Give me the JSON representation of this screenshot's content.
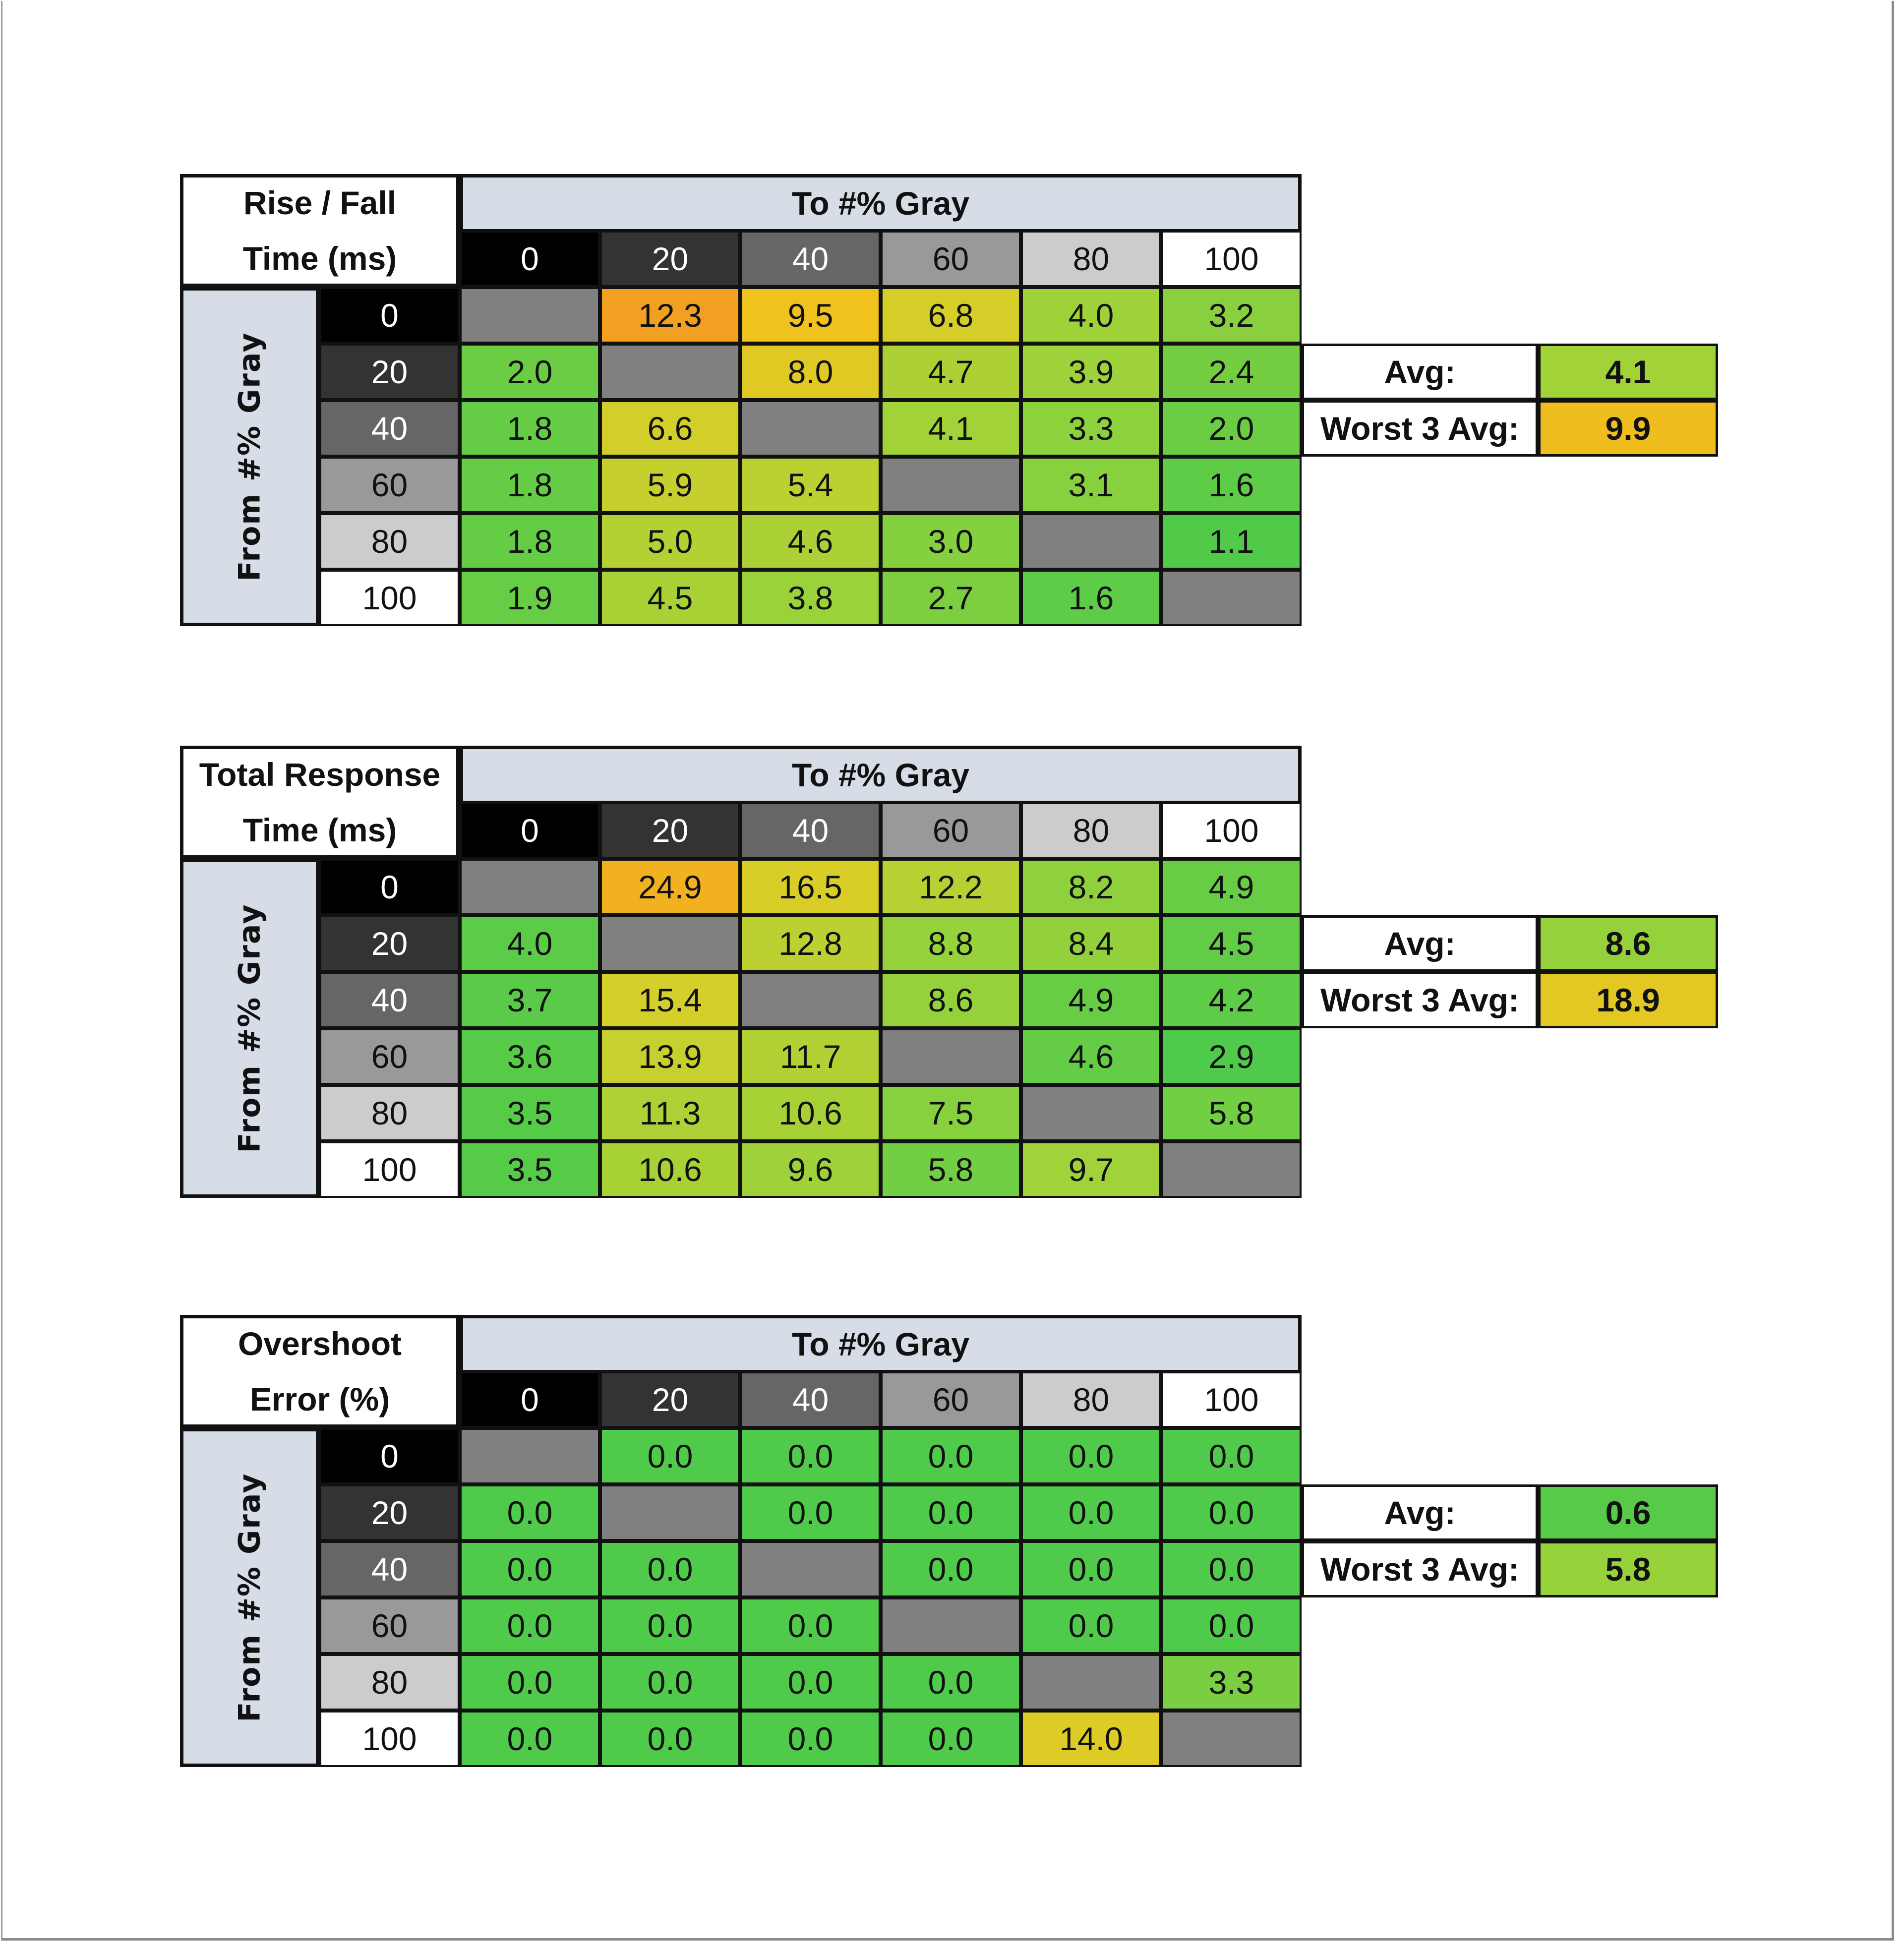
{
  "tables": [
    {
      "title_lines": [
        "Rise / Fall",
        "Time (ms)"
      ],
      "to_label": "To #% Gray",
      "from_label": "From #% Gray",
      "levels": [
        "0",
        "20",
        "40",
        "60",
        "80",
        "100"
      ],
      "color_scale": {
        "min": 1.0,
        "max": 12.3
      },
      "values": [
        [
          null,
          "12.3",
          "9.5",
          "6.8",
          "4.0",
          "3.2"
        ],
        [
          "2.0",
          null,
          "8.0",
          "4.7",
          "3.9",
          "2.4"
        ],
        [
          "1.8",
          "6.6",
          null,
          "4.1",
          "3.3",
          "2.0"
        ],
        [
          "1.8",
          "5.9",
          "5.4",
          null,
          "3.1",
          "1.6"
        ],
        [
          "1.8",
          "5.0",
          "4.6",
          "3.0",
          null,
          "1.1"
        ],
        [
          "1.9",
          "4.5",
          "3.8",
          "2.7",
          "1.6",
          null
        ]
      ],
      "avg_label": "Avg:",
      "avg": "4.1",
      "worst_label": "Worst 3 Avg:",
      "worst": "9.9"
    },
    {
      "title_lines": [
        "Total Response",
        "Time (ms)"
      ],
      "to_label": "To #% Gray",
      "from_label": "From #% Gray",
      "levels": [
        "0",
        "20",
        "40",
        "60",
        "80",
        "100"
      ],
      "color_scale": {
        "min": 2.9,
        "max": 28.0
      },
      "values": [
        [
          null,
          "24.9",
          "16.5",
          "12.2",
          "8.2",
          "4.9"
        ],
        [
          "4.0",
          null,
          "12.8",
          "8.8",
          "8.4",
          "4.5"
        ],
        [
          "3.7",
          "15.4",
          null,
          "8.6",
          "4.9",
          "4.2"
        ],
        [
          "3.6",
          "13.9",
          "11.7",
          null,
          "4.6",
          "2.9"
        ],
        [
          "3.5",
          "11.3",
          "10.6",
          "7.5",
          null,
          "5.8"
        ],
        [
          "3.5",
          "10.6",
          "9.6",
          "5.8",
          "9.7",
          null
        ]
      ],
      "avg_label": "Avg:",
      "avg": "8.6",
      "worst_label": "Worst 3 Avg:",
      "worst": "18.9"
    },
    {
      "title_lines": [
        "Overshoot",
        "Error (%)"
      ],
      "to_label": "To #% Gray",
      "from_label": "From #% Gray",
      "levels": [
        "0",
        "20",
        "40",
        "60",
        "80",
        "100"
      ],
      "color_scale": {
        "min": 0.0,
        "max": 24.0
      },
      "values": [
        [
          null,
          "0.0",
          "0.0",
          "0.0",
          "0.0",
          "0.0"
        ],
        [
          "0.0",
          null,
          "0.0",
          "0.0",
          "0.0",
          "0.0"
        ],
        [
          "0.0",
          "0.0",
          null,
          "0.0",
          "0.0",
          "0.0"
        ],
        [
          "0.0",
          "0.0",
          "0.0",
          null,
          "0.0",
          "0.0"
        ],
        [
          "0.0",
          "0.0",
          "0.0",
          "0.0",
          null,
          "3.3"
        ],
        [
          "0.0",
          "0.0",
          "0.0",
          "0.0",
          "14.0",
          null
        ]
      ],
      "avg_label": "Avg:",
      "avg": "0.6",
      "worst_label": "Worst 3 Avg:",
      "worst": "5.8"
    }
  ],
  "colors": {
    "header_band": "#d6dde6",
    "diagonal": "#808080",
    "level_fills": [
      "#000000",
      "#333333",
      "#666666",
      "#999999",
      "#cccccc",
      "#ffffff"
    ],
    "scale_stops": [
      "#4fca4a",
      "#9bd23a",
      "#d4cf2a",
      "#f0c21e",
      "#f1a022"
    ]
  },
  "chart_data": [
    {
      "type": "heatmap",
      "title": "Rise / Fall Time (ms)",
      "xlabel": "To #% Gray",
      "ylabel": "From #% Gray",
      "x": [
        0,
        20,
        40,
        60,
        80,
        100
      ],
      "y": [
        0,
        20,
        40,
        60,
        80,
        100
      ],
      "values": [
        [
          null,
          12.3,
          9.5,
          6.8,
          4.0,
          3.2
        ],
        [
          2.0,
          null,
          8.0,
          4.7,
          3.9,
          2.4
        ],
        [
          1.8,
          6.6,
          null,
          4.1,
          3.3,
          2.0
        ],
        [
          1.8,
          5.9,
          5.4,
          null,
          3.1,
          1.6
        ],
        [
          1.8,
          5.0,
          4.6,
          3.0,
          null,
          1.1
        ],
        [
          1.9,
          4.5,
          3.8,
          2.7,
          1.6,
          null
        ]
      ],
      "avg": 4.1,
      "worst_3_avg": 9.9
    },
    {
      "type": "heatmap",
      "title": "Total Response Time (ms)",
      "xlabel": "To #% Gray",
      "ylabel": "From #% Gray",
      "x": [
        0,
        20,
        40,
        60,
        80,
        100
      ],
      "y": [
        0,
        20,
        40,
        60,
        80,
        100
      ],
      "values": [
        [
          null,
          24.9,
          16.5,
          12.2,
          8.2,
          4.9
        ],
        [
          4.0,
          null,
          12.8,
          8.8,
          8.4,
          4.5
        ],
        [
          3.7,
          15.4,
          null,
          8.6,
          4.9,
          4.2
        ],
        [
          3.6,
          13.9,
          11.7,
          null,
          4.6,
          2.9
        ],
        [
          3.5,
          11.3,
          10.6,
          7.5,
          null,
          5.8
        ],
        [
          3.5,
          10.6,
          9.6,
          5.8,
          9.7,
          null
        ]
      ],
      "avg": 8.6,
      "worst_3_avg": 18.9
    },
    {
      "type": "heatmap",
      "title": "Overshoot Error (%)",
      "xlabel": "To #% Gray",
      "ylabel": "From #% Gray",
      "x": [
        0,
        20,
        40,
        60,
        80,
        100
      ],
      "y": [
        0,
        20,
        40,
        60,
        80,
        100
      ],
      "values": [
        [
          null,
          0.0,
          0.0,
          0.0,
          0.0,
          0.0
        ],
        [
          0.0,
          null,
          0.0,
          0.0,
          0.0,
          0.0
        ],
        [
          0.0,
          0.0,
          null,
          0.0,
          0.0,
          0.0
        ],
        [
          0.0,
          0.0,
          0.0,
          null,
          0.0,
          0.0
        ],
        [
          0.0,
          0.0,
          0.0,
          0.0,
          null,
          3.3
        ],
        [
          0.0,
          0.0,
          0.0,
          0.0,
          14.0,
          null
        ]
      ],
      "avg": 0.6,
      "worst_3_avg": 5.8
    }
  ]
}
